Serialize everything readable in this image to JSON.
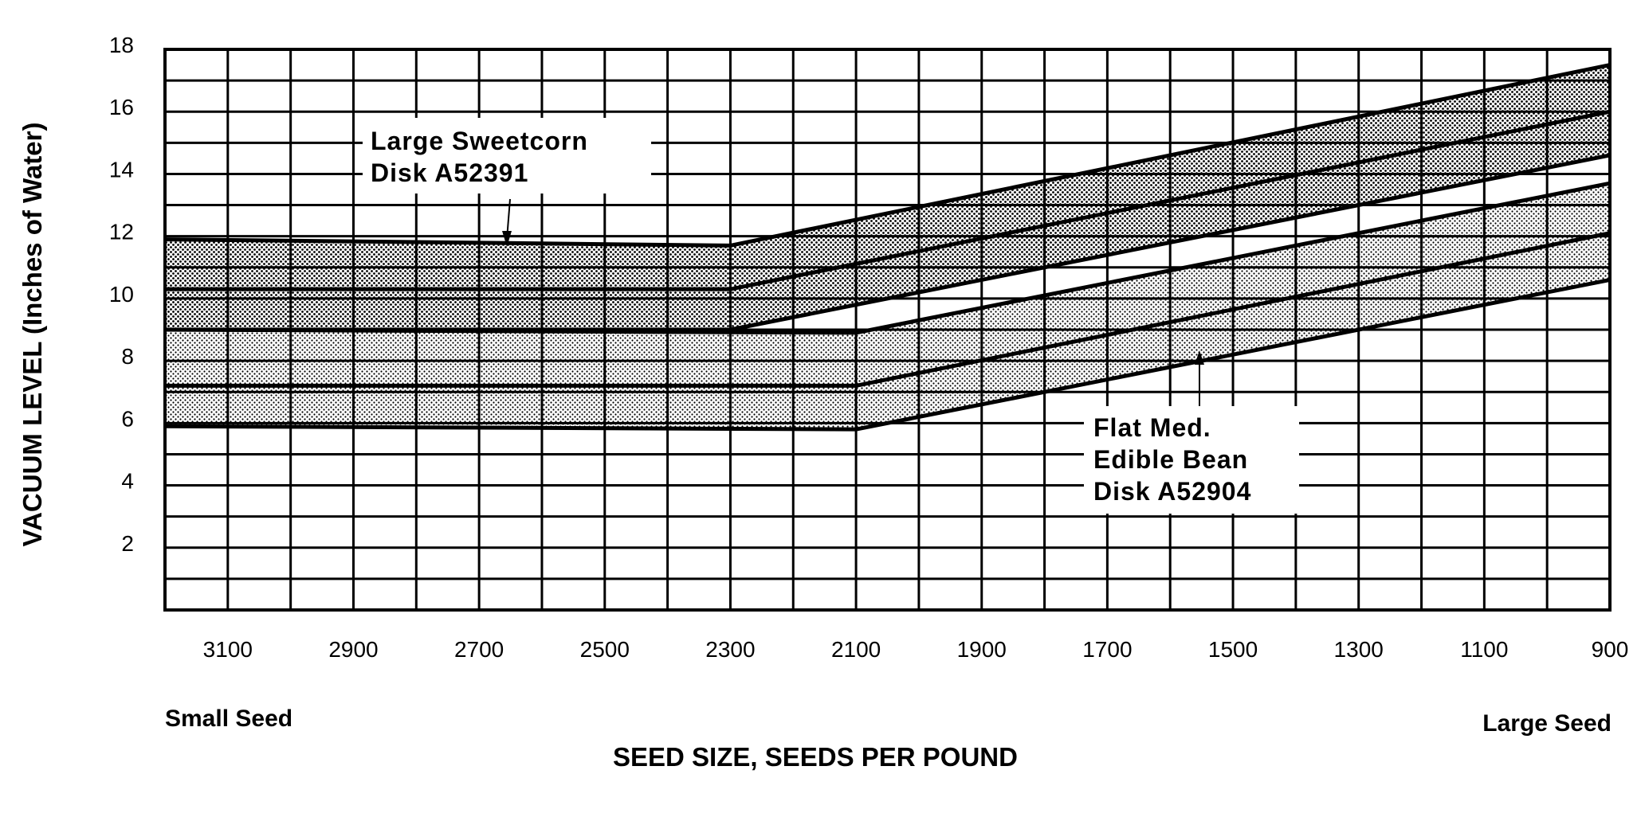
{
  "chart_data": {
    "type": "area",
    "title": "",
    "xlabel": "SEED SIZE, SEEDS PER POUND",
    "ylabel": "VACUUM LEVEL  (Inches of Water)",
    "xlim": [
      3200,
      900
    ],
    "ylim": [
      0,
      18
    ],
    "grid": true,
    "x_ticks": [
      "3100",
      "2900",
      "2700",
      "2500",
      "2300",
      "2100",
      "1900",
      "1700",
      "1500",
      "1300",
      "1100",
      "900"
    ],
    "y_ticks": [
      "2",
      "4",
      "6",
      "8",
      "10",
      "12",
      "14",
      "16",
      "18"
    ],
    "x_end_labels": {
      "left": "Small Seed",
      "right": "Large Seed"
    },
    "series": [
      {
        "name": "Large Sweetcorn Disk A52391",
        "label_lines": [
          "Large  Sweetcorn",
          "Disk  A52391"
        ],
        "color": "#000000",
        "x": [
          3200,
          2300,
          900
        ],
        "upper": [
          11.9,
          11.7,
          17.5
        ],
        "middle": [
          10.3,
          10.3,
          16.0
        ],
        "lower": [
          9.0,
          9.0,
          14.6
        ]
      },
      {
        "name": "Flat Med. Edible Bean Disk A52904",
        "label_lines": [
          "Flat  Med.",
          "Edible  Bean",
          "Disk  A52904"
        ],
        "color": "#000000",
        "x": [
          3200,
          2100,
          900
        ],
        "upper": [
          9.0,
          8.9,
          13.7
        ],
        "middle": [
          7.2,
          7.2,
          12.1
        ],
        "lower": [
          5.9,
          5.8,
          10.6
        ]
      }
    ]
  }
}
